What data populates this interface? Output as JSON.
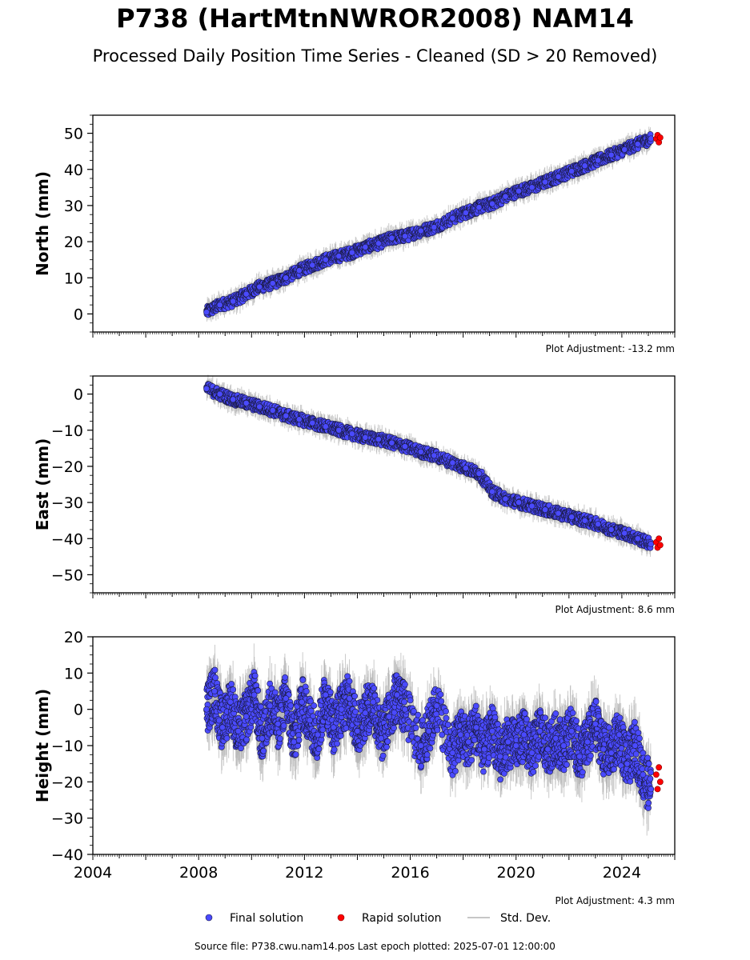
{
  "title": "P738 (HartMtnNWROR2008) NAM14",
  "subtitle": "Processed Daily Position Time Series - Cleaned (SD > 20 Removed)",
  "footer": "Source file: P738.cwu.nam14.pos  Last epoch plotted: 2025-07-01 12:00:00",
  "colors": {
    "final": "#4a4aff",
    "final_edge": "#1a1a40",
    "rapid": "#ff0000",
    "stddev": "#b4b4b4"
  },
  "chart_data": [
    {
      "type": "scatter",
      "ylabel": "North (mm)",
      "ylim": [
        -5,
        55
      ],
      "yticks": [
        0,
        10,
        20,
        30,
        40,
        50
      ],
      "xlim": [
        2004,
        2026
      ],
      "adjustment": "Plot Adjustment: -13.2 mm",
      "series": [
        {
          "name": "Final solution",
          "x": [
            2008.3,
            2008.8,
            2009.3,
            2009.8,
            2010.3,
            2010.8,
            2011.3,
            2011.8,
            2012.3,
            2012.8,
            2013.3,
            2013.8,
            2014.3,
            2014.8,
            2015.3,
            2015.8,
            2016.4,
            2016.9,
            2017.6,
            2018.1,
            2018.6,
            2019.1,
            2019.6,
            2020.1,
            2020.6,
            2021.1,
            2021.6,
            2022.1,
            2022.6,
            2023.1,
            2023.6,
            2024.1,
            2024.6,
            2025.1
          ],
          "y": [
            0.5,
            2.5,
            3.5,
            5.5,
            7.5,
            8.5,
            10,
            12,
            13.5,
            15,
            16,
            17,
            18.5,
            19.5,
            21,
            21.5,
            23,
            24,
            26.5,
            28,
            29.5,
            30.5,
            32.5,
            34,
            35,
            36.5,
            38,
            39.5,
            41,
            42.5,
            44,
            45.5,
            47,
            48.5
          ]
        },
        {
          "name": "Rapid solution",
          "x": [
            2025.3,
            2025.35,
            2025.4,
            2025.45
          ],
          "y": [
            48.5,
            49.5,
            47.5,
            48.8
          ]
        }
      ]
    },
    {
      "type": "scatter",
      "ylabel": "East (mm)",
      "ylim": [
        -55,
        5
      ],
      "yticks": [
        0,
        -10,
        -20,
        -30,
        -40,
        -50
      ],
      "xlim": [
        2004,
        2026
      ],
      "adjustment": "Plot Adjustment: 8.6 mm",
      "series": [
        {
          "name": "Final solution",
          "x": [
            2008.3,
            2008.8,
            2009.3,
            2009.8,
            2010.3,
            2010.8,
            2011.3,
            2011.8,
            2012.3,
            2012.8,
            2013.3,
            2013.8,
            2014.3,
            2014.8,
            2015.3,
            2015.8,
            2016.4,
            2016.9,
            2017.6,
            2018.1,
            2018.6,
            2019.1,
            2019.6,
            2020.1,
            2020.6,
            2021.1,
            2021.6,
            2022.1,
            2022.6,
            2023.1,
            2023.6,
            2024.1,
            2024.6,
            2025.1
          ],
          "y": [
            1.5,
            0,
            -1.5,
            -2.5,
            -3.5,
            -4.5,
            -6,
            -7,
            -8,
            -9,
            -10,
            -11,
            -12,
            -12.5,
            -13.5,
            -14.5,
            -16,
            -17,
            -19,
            -20.5,
            -22,
            -27,
            -29,
            -30,
            -31,
            -32,
            -33,
            -34,
            -35,
            -36,
            -37.5,
            -38.5,
            -40,
            -41.5
          ]
        },
        {
          "name": "Rapid solution",
          "x": [
            2025.3,
            2025.35,
            2025.4,
            2025.45
          ],
          "y": [
            -41,
            -42.5,
            -40,
            -41.8
          ]
        }
      ]
    },
    {
      "type": "scatter",
      "ylabel": "Height (mm)",
      "ylim": [
        -40,
        20
      ],
      "yticks": [
        20,
        10,
        0,
        -10,
        -20,
        -30,
        -40
      ],
      "xlim": [
        2004,
        2026
      ],
      "xticks": [
        "2004",
        "2008",
        "2012",
        "2016",
        "2020",
        "2024"
      ],
      "adjustment": "Plot Adjustment: 4.3 mm",
      "series": [
        {
          "name": "Final solution",
          "x": [
            2008.3,
            2008.6,
            2008.9,
            2009.2,
            2009.5,
            2009.8,
            2010.1,
            2010.4,
            2010.7,
            2011.0,
            2011.3,
            2011.6,
            2011.9,
            2012.2,
            2012.5,
            2012.8,
            2013.1,
            2013.4,
            2013.7,
            2014.0,
            2014.3,
            2014.6,
            2014.9,
            2015.2,
            2015.5,
            2015.8,
            2016.4,
            2016.7,
            2017.0,
            2017.6,
            2017.9,
            2018.2,
            2018.5,
            2018.8,
            2019.1,
            2019.4,
            2019.7,
            2020.0,
            2020.3,
            2020.6,
            2020.9,
            2021.2,
            2021.5,
            2021.8,
            2022.1,
            2022.4,
            2022.7,
            2023.0,
            2023.3,
            2023.6,
            2023.9,
            2024.2,
            2024.5,
            2024.8,
            2025.1
          ],
          "y": [
            0,
            5,
            -5,
            2,
            -6,
            -2,
            4,
            -8,
            1,
            -4,
            3,
            -9,
            2,
            -3,
            -7,
            4,
            -5,
            0,
            3,
            -6,
            -1,
            2,
            -8,
            -2,
            4,
            0,
            -10,
            -6,
            1,
            -12,
            -7,
            -9,
            -5,
            -11,
            -6,
            -13,
            -9,
            -10,
            -7,
            -12,
            -6,
            -11,
            -8,
            -10,
            -6,
            -13,
            -9,
            -4,
            -11,
            -12,
            -7,
            -15,
            -10,
            -18,
            -22
          ]
        },
        {
          "name": "Rapid solution",
          "x": [
            2025.3,
            2025.35,
            2025.4,
            2025.45
          ],
          "y": [
            -18,
            -22,
            -16,
            -20
          ]
        }
      ]
    }
  ],
  "legend": {
    "final": "Final solution",
    "rapid": "Rapid solution",
    "std": "Std. Dev."
  }
}
